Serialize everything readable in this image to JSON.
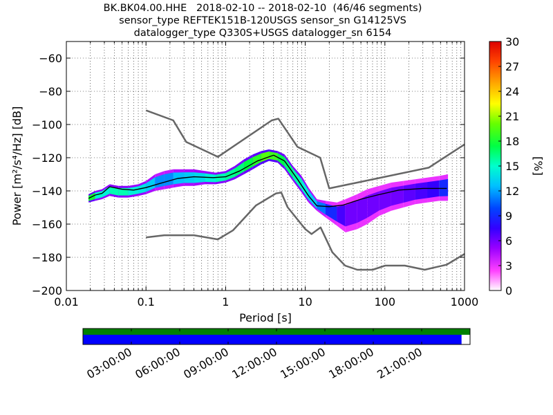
{
  "chart_data": {
    "type": "heatmap",
    "title_lines": [
      "BK.BK04.00.HHE   2018-02-10 -- 2018-02-10  (46/46 segments)",
      "sensor_type REFTEK151B-120USGS sensor_sn G14125VS",
      "datalogger_type Q330S+USGS datalogger_sn 6154"
    ],
    "xlabel": "Period [s]",
    "ylabel": "Power [m²/s⁴/Hz] [dB]",
    "x_scale": "log",
    "xlim": [
      0.01,
      1000
    ],
    "x_ticks": [
      {
        "value": 0.01,
        "label": "0.01"
      },
      {
        "value": 0.1,
        "label": "0.1"
      },
      {
        "value": 1,
        "label": "1"
      },
      {
        "value": 10,
        "label": "10"
      },
      {
        "value": 100,
        "label": "100"
      },
      {
        "value": 1000,
        "label": "1000"
      }
    ],
    "ylim": [
      -200,
      -50
    ],
    "y_ticks": [
      -60,
      -80,
      -100,
      -120,
      -140,
      -160,
      -180,
      -200
    ],
    "grid": true,
    "colorbar": {
      "label": "[%]",
      "range": [
        0,
        30
      ],
      "ticks": [
        0,
        3,
        6,
        9,
        12,
        15,
        18,
        21,
        24,
        27,
        30
      ]
    },
    "noise_model_high": [
      [
        0.1,
        -91.5
      ],
      [
        0.22,
        -97.5
      ],
      [
        0.32,
        -110.5
      ],
      [
        0.8,
        -119.5
      ],
      [
        3.8,
        -97.5
      ],
      [
        4.6,
        -96.5
      ],
      [
        8,
        -113.5
      ],
      [
        15.4,
        -120.0
      ],
      [
        20,
        -138.5
      ],
      [
        354.8,
        -126.0
      ],
      [
        1000,
        -112.0
      ]
    ],
    "noise_model_low": [
      [
        0.1,
        -168.0
      ],
      [
        0.17,
        -166.7
      ],
      [
        0.4,
        -166.7
      ],
      [
        0.8,
        -169.2
      ],
      [
        1.24,
        -163.7
      ],
      [
        2.4,
        -148.8
      ],
      [
        4.3,
        -141.5
      ],
      [
        5.0,
        -141.0
      ],
      [
        6.0,
        -149.8
      ],
      [
        10,
        -163.0
      ],
      [
        12,
        -166.0
      ],
      [
        15.6,
        -162.0
      ],
      [
        21.9,
        -177.0
      ],
      [
        31.6,
        -185.0
      ],
      [
        45,
        -187.5
      ],
      [
        70,
        -187.5
      ],
      [
        101,
        -185.0
      ],
      [
        178,
        -185.0
      ],
      [
        316,
        -187.5
      ],
      [
        600,
        -184.4
      ],
      [
        1000,
        -178.0
      ]
    ],
    "mean_psd": [
      [
        0.019,
        -144.5
      ],
      [
        0.023,
        -142.5
      ],
      [
        0.028,
        -141.5
      ],
      [
        0.035,
        -137.5
      ],
      [
        0.05,
        -139.0
      ],
      [
        0.07,
        -139.5
      ],
      [
        0.1,
        -138.0
      ],
      [
        0.15,
        -135.5
      ],
      [
        0.25,
        -132.5
      ],
      [
        0.4,
        -131.5
      ],
      [
        0.7,
        -132.0
      ],
      [
        1.0,
        -131.5
      ],
      [
        1.5,
        -128.0
      ],
      [
        2.5,
        -122.0
      ],
      [
        4.0,
        -118.5
      ],
      [
        5.5,
        -122.0
      ],
      [
        8.0,
        -133.0
      ],
      [
        11.0,
        -143.0
      ],
      [
        14.0,
        -149.0
      ],
      [
        20.0,
        -149.5
      ],
      [
        30,
        -148.5
      ],
      [
        50,
        -145.0
      ],
      [
        80,
        -142.5
      ],
      [
        150,
        -139.5
      ],
      [
        300,
        -138.5
      ],
      [
        600,
        -138.5
      ]
    ],
    "psd_band": [
      {
        "x": 0.019,
        "lo": -147,
        "hi": -142,
        "level": 20
      },
      {
        "x": 0.023,
        "lo": -146,
        "hi": -140,
        "level": 16
      },
      {
        "x": 0.028,
        "lo": -145,
        "hi": -139,
        "level": 14
      },
      {
        "x": 0.035,
        "lo": -143,
        "hi": -136,
        "level": 15
      },
      {
        "x": 0.045,
        "lo": -144,
        "hi": -137,
        "level": 16
      },
      {
        "x": 0.06,
        "lo": -144,
        "hi": -137,
        "level": 15
      },
      {
        "x": 0.08,
        "lo": -143,
        "hi": -136,
        "level": 14
      },
      {
        "x": 0.1,
        "lo": -142,
        "hi": -134,
        "level": 14
      },
      {
        "x": 0.13,
        "lo": -140,
        "hi": -130,
        "level": 12
      },
      {
        "x": 0.17,
        "lo": -139,
        "hi": -128,
        "level": 11
      },
      {
        "x": 0.22,
        "lo": -138,
        "hi": -127,
        "level": 12
      },
      {
        "x": 0.3,
        "lo": -137,
        "hi": -127,
        "level": 13
      },
      {
        "x": 0.4,
        "lo": -137,
        "hi": -127,
        "level": 13
      },
      {
        "x": 0.55,
        "lo": -136,
        "hi": -128,
        "level": 14
      },
      {
        "x": 0.75,
        "lo": -136,
        "hi": -129,
        "level": 15
      },
      {
        "x": 1.0,
        "lo": -135,
        "hi": -128,
        "level": 16
      },
      {
        "x": 1.3,
        "lo": -133,
        "hi": -125,
        "level": 16
      },
      {
        "x": 1.7,
        "lo": -130,
        "hi": -121,
        "level": 17
      },
      {
        "x": 2.2,
        "lo": -127,
        "hi": -118,
        "level": 18
      },
      {
        "x": 2.8,
        "lo": -124,
        "hi": -116,
        "level": 19
      },
      {
        "x": 3.5,
        "lo": -122,
        "hi": -115,
        "level": 20
      },
      {
        "x": 4.5,
        "lo": -123,
        "hi": -116,
        "level": 18
      },
      {
        "x": 5.5,
        "lo": -127,
        "hi": -118,
        "level": 17
      },
      {
        "x": 7.0,
        "lo": -134,
        "hi": -125,
        "level": 16
      },
      {
        "x": 9.0,
        "lo": -141,
        "hi": -131,
        "level": 15
      },
      {
        "x": 11.0,
        "lo": -147,
        "hi": -138,
        "level": 14
      },
      {
        "x": 14.0,
        "lo": -152,
        "hi": -145,
        "level": 12
      },
      {
        "x": 18.0,
        "lo": -156,
        "hi": -146,
        "level": 10
      },
      {
        "x": 25.0,
        "lo": -161,
        "hi": -147,
        "level": 8
      },
      {
        "x": 32.0,
        "lo": -165,
        "hi": -145,
        "level": 6
      },
      {
        "x": 45.0,
        "lo": -163,
        "hi": -142,
        "level": 6
      },
      {
        "x": 60.0,
        "lo": -160,
        "hi": -139,
        "level": 6
      },
      {
        "x": 85.0,
        "lo": -155,
        "hi": -137,
        "level": 6
      },
      {
        "x": 120.0,
        "lo": -152,
        "hi": -135,
        "level": 6
      },
      {
        "x": 170.0,
        "lo": -150,
        "hi": -134,
        "level": 6
      },
      {
        "x": 240.0,
        "lo": -148,
        "hi": -133,
        "level": 7
      },
      {
        "x": 340.0,
        "lo": -147,
        "hi": -132,
        "level": 7
      },
      {
        "x": 480.0,
        "lo": -146,
        "hi": -131,
        "level": 8
      },
      {
        "x": 620.0,
        "lo": -146,
        "hi": -130,
        "level": 10
      }
    ],
    "coverage": {
      "time_labels": [
        "03:00:00",
        "06:00:00",
        "09:00:00",
        "12:00:00",
        "15:00:00",
        "18:00:00",
        "21:00:00"
      ],
      "top_bar_color": "#008000",
      "bottom_bar_color": "#0000ff",
      "bottom_bar_fraction": 0.978
    },
    "colors": {
      "noise_model": "#666666",
      "mean_line": "#000000",
      "grid": "#000000"
    }
  }
}
